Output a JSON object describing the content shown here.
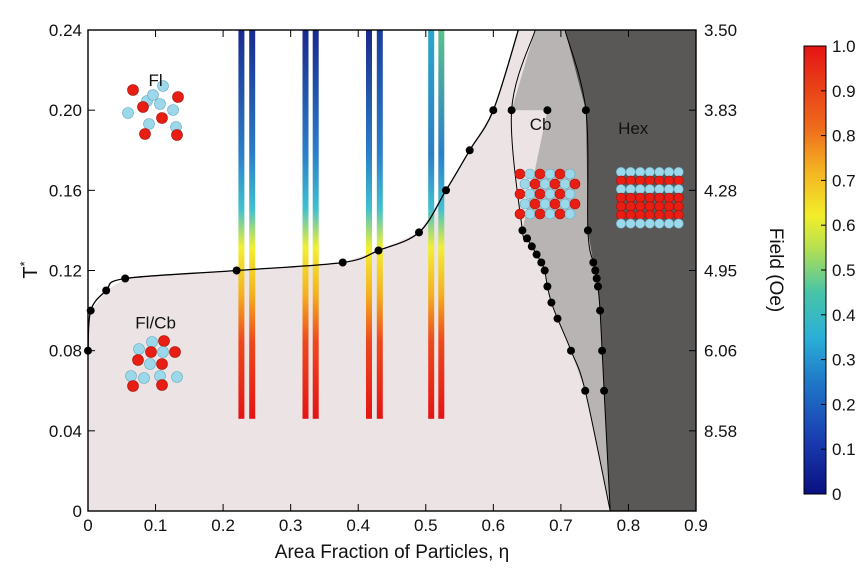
{
  "chart_data": {
    "type": "scatter",
    "xlabel": "Area Fraction of Particles, η",
    "ylabel": "T*",
    "y2label": "Field (Oe)",
    "xlim": [
      0,
      0.9
    ],
    "ylim": [
      0,
      0.24
    ],
    "x_ticks": [
      "0",
      "0.1",
      "0.2",
      "0.3",
      "0.4",
      "0.5",
      "0.6",
      "0.7",
      "0.8",
      "0.9"
    ],
    "y_ticks": [
      "0",
      "0.04",
      "0.08",
      "0.12",
      "0.16",
      "0.20",
      "0.24"
    ],
    "y2_ticks": [
      {
        "label": "3.50",
        "t": 0.24
      },
      {
        "label": "3.83",
        "t": 0.2
      },
      {
        "label": "4.28",
        "t": 0.16
      },
      {
        "label": "4.95",
        "t": 0.12
      },
      {
        "label": "6.06",
        "t": 0.08
      },
      {
        "label": "8.58",
        "t": 0.04
      }
    ],
    "colorbar": {
      "range": [
        0,
        1
      ],
      "ticks": [
        "0",
        "0.1",
        "0.2",
        "0.3",
        "0.4",
        "0.5",
        "0.6",
        "0.7",
        "0.8",
        "0.9",
        "1.0"
      ]
    },
    "phases": [
      {
        "label": "Fl",
        "x": 0.1,
        "y": 0.212
      },
      {
        "label": "Fl/Cb",
        "x": 0.1,
        "y": 0.091
      },
      {
        "label": "Cb",
        "x": 0.67,
        "y": 0.19
      },
      {
        "label": "Hex",
        "x": 0.807,
        "y": 0.188
      }
    ],
    "fl_boundary": [
      {
        "x": 0.0,
        "y": 0.08
      },
      {
        "x": 0.004,
        "y": 0.1
      },
      {
        "x": 0.027,
        "y": 0.11
      },
      {
        "x": 0.055,
        "y": 0.116
      },
      {
        "x": 0.22,
        "y": 0.12
      },
      {
        "x": 0.377,
        "y": 0.124
      },
      {
        "x": 0.43,
        "y": 0.13
      },
      {
        "x": 0.49,
        "y": 0.139
      },
      {
        "x": 0.53,
        "y": 0.16
      },
      {
        "x": 0.565,
        "y": 0.18
      },
      {
        "x": 0.6,
        "y": 0.2
      }
    ],
    "cb_left_boundary": [
      {
        "x": 0.627,
        "y": 0.2
      },
      {
        "x": 0.68,
        "y": 0.2
      },
      {
        "x": 0.643,
        "y": 0.14
      },
      {
        "x": 0.65,
        "y": 0.136
      },
      {
        "x": 0.657,
        "y": 0.132
      },
      {
        "x": 0.664,
        "y": 0.128
      },
      {
        "x": 0.671,
        "y": 0.124
      },
      {
        "x": 0.676,
        "y": 0.12
      },
      {
        "x": 0.68,
        "y": 0.112
      },
      {
        "x": 0.686,
        "y": 0.104
      },
      {
        "x": 0.695,
        "y": 0.096
      },
      {
        "x": 0.715,
        "y": 0.08
      },
      {
        "x": 0.736,
        "y": 0.06
      }
    ],
    "hex_boundary": [
      {
        "x": 0.737,
        "y": 0.2
      },
      {
        "x": 0.74,
        "y": 0.14
      },
      {
        "x": 0.748,
        "y": 0.124
      },
      {
        "x": 0.751,
        "y": 0.12
      },
      {
        "x": 0.753,
        "y": 0.116
      },
      {
        "x": 0.755,
        "y": 0.112
      },
      {
        "x": 0.758,
        "y": 0.1
      },
      {
        "x": 0.761,
        "y": 0.08
      },
      {
        "x": 0.764,
        "y": 0.06
      }
    ],
    "order_bars": [
      {
        "x": 0.227,
        "top_color": "#1a2a8c"
      },
      {
        "x": 0.243,
        "top_color": "#1a2a8c"
      },
      {
        "x": 0.322,
        "top_color": "#1a2a8c"
      },
      {
        "x": 0.337,
        "top_color": "#1a2a8c"
      },
      {
        "x": 0.416,
        "top_color": "#1a2a8c"
      },
      {
        "x": 0.432,
        "top_color": "#1a3c9c"
      },
      {
        "x": 0.508,
        "top_color": "#2aa8c8"
      },
      {
        "x": 0.523,
        "top_color": "#5cc08a"
      }
    ],
    "colors": {
      "fl_cb": "#ece4e4",
      "cb": "#b8b4b4",
      "hex": "#5a5856",
      "point": "#000000",
      "particle_red": "#e81e14",
      "particle_blue": "#9ad8ea"
    }
  }
}
